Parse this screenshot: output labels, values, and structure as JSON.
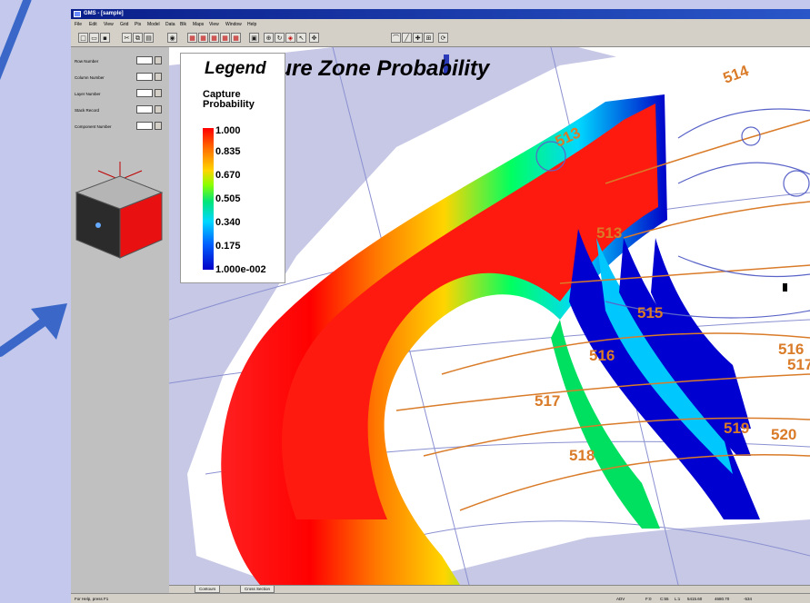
{
  "window": {
    "title": "GMS - [sample]",
    "menu": [
      "File",
      "Edit",
      "View",
      "Grid",
      "Pts",
      "Model",
      "Data",
      "Blk",
      "Maps",
      "View",
      "Window",
      "Help"
    ]
  },
  "left_panel": {
    "fields": [
      {
        "label": "Row Number"
      },
      {
        "label": "Column Number"
      },
      {
        "label": "Layer Number"
      },
      {
        "label": "Stack Record"
      },
      {
        "label": "Component Number"
      }
    ]
  },
  "chart": {
    "title": "Capture Zone Probability",
    "legend_title": "Legend",
    "legend_caption": "Capture Probability",
    "legend_ticks": [
      "1.000",
      "0.835",
      "0.670",
      "0.505",
      "0.340",
      "0.175",
      "1.000e-002"
    ],
    "contour_labels": [
      "514",
      "513",
      "513",
      "515",
      "516",
      "517",
      "517",
      "518",
      "518",
      "519",
      "520",
      "516",
      "515"
    ],
    "colors": {
      "high": "#ff0000",
      "mid": "#00ff60",
      "low": "#0000c8",
      "contour": "#d97b28",
      "grid": "#5a64c8"
    }
  },
  "tabs": [
    "Contours",
    "Cross Section"
  ],
  "status": {
    "help": "For Help, press F1",
    "fields": [
      "ADV",
      "F:0",
      "C:55",
      "L:1",
      "5415.60",
      "4680.70",
      "-534"
    ]
  }
}
